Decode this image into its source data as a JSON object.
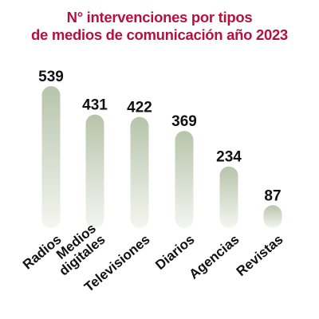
{
  "chart_data": {
    "type": "bar",
    "title_lines": [
      "N° intervenciones por tipos",
      "de medios de comunicación año 2023"
    ],
    "categories": [
      [
        "Radios"
      ],
      [
        "Medios",
        "digitales"
      ],
      [
        "Televisiones"
      ],
      [
        "Diarios"
      ],
      [
        "Agencias"
      ],
      [
        "Revistas"
      ]
    ],
    "values": [
      539,
      431,
      422,
      369,
      234,
      87
    ],
    "xlabel": "",
    "ylabel": "",
    "ylim": [
      0,
      539
    ],
    "grid": false,
    "legend": "none",
    "colors": {
      "title": "#b3123f",
      "bar_top": "#b7c4ab",
      "bar_bottom": "#f4f6f1",
      "text": "#111111"
    }
  }
}
